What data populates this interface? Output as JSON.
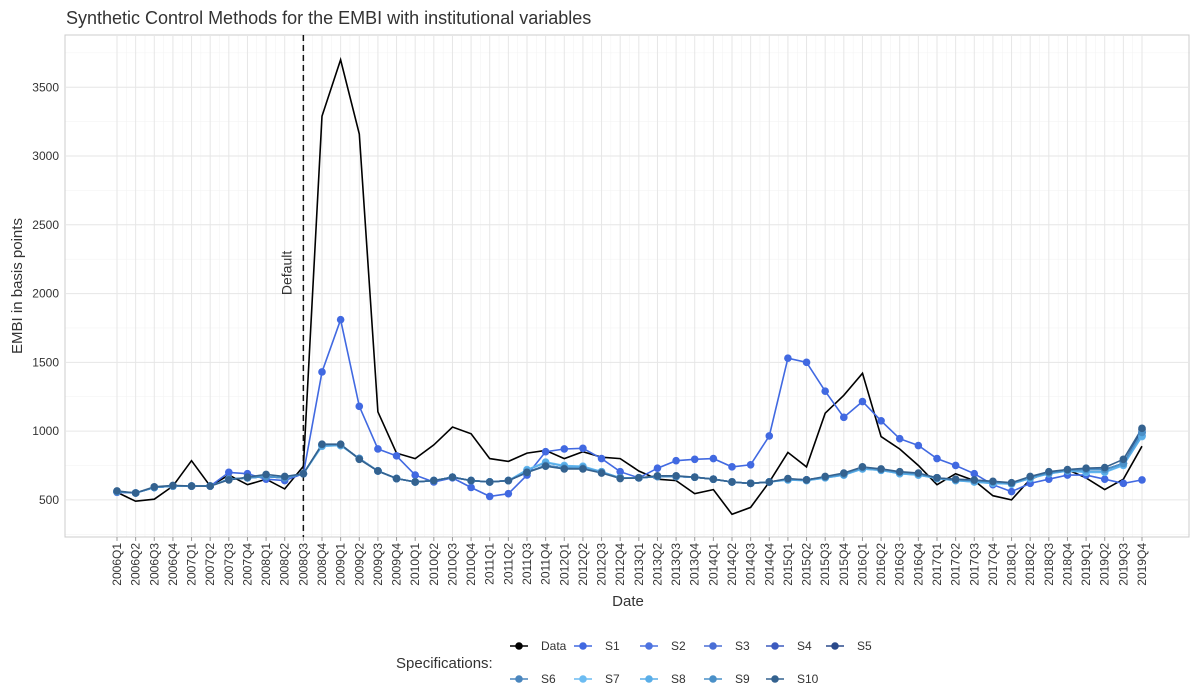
{
  "chart_data": {
    "type": "line",
    "title": "Synthetic Control Methods for the EMBI with institutional variables",
    "x_label": "Date",
    "y_label": "EMBI in basis points",
    "legend_title": "Specifications:",
    "annotation": {
      "text": "Default",
      "x": "2008Q3"
    },
    "categories": [
      "2006Q1",
      "2006Q2",
      "2006Q3",
      "2006Q4",
      "2007Q1",
      "2007Q2",
      "2007Q3",
      "2007Q4",
      "2008Q1",
      "2008Q2",
      "2008Q3",
      "2008Q4",
      "2009Q1",
      "2009Q2",
      "2009Q3",
      "2009Q4",
      "2010Q1",
      "2010Q2",
      "2010Q3",
      "2010Q4",
      "2011Q1",
      "2011Q2",
      "2011Q3",
      "2011Q4",
      "2012Q1",
      "2012Q2",
      "2012Q3",
      "2012Q4",
      "2013Q1",
      "2013Q2",
      "2013Q3",
      "2013Q4",
      "2014Q1",
      "2014Q2",
      "2014Q3",
      "2014Q4",
      "2015Q1",
      "2015Q2",
      "2015Q3",
      "2015Q4",
      "2016Q1",
      "2016Q2",
      "2016Q3",
      "2016Q4",
      "2017Q1",
      "2017Q2",
      "2017Q3",
      "2017Q4",
      "2018Q1",
      "2018Q2",
      "2018Q3",
      "2018Q4",
      "2019Q1",
      "2019Q2",
      "2019Q3",
      "2019Q4"
    ],
    "ylim": [
      230,
      3880
    ],
    "yticks": [
      500,
      1000,
      1500,
      2000,
      2500,
      3000,
      3500
    ],
    "grid": true,
    "series": [
      {
        "name": "Data",
        "color": "#000000",
        "points": false,
        "values": [
          555,
          490,
          505,
          600,
          785,
          600,
          680,
          610,
          650,
          580,
          745,
          3290,
          3700,
          3160,
          1140,
          840,
          800,
          900,
          1030,
          980,
          800,
          780,
          840,
          860,
          800,
          850,
          810,
          800,
          710,
          650,
          640,
          545,
          575,
          395,
          445,
          630,
          845,
          740,
          1130,
          1260,
          1420,
          960,
          870,
          750,
          610,
          690,
          640,
          530,
          500,
          650,
          700,
          720,
          660,
          575,
          650,
          890
        ]
      },
      {
        "name": "S1",
        "color": "#4169e1",
        "points": true,
        "values": [
          555,
          550,
          590,
          600,
          600,
          600,
          700,
          690,
          650,
          640,
          690,
          1430,
          1810,
          1180,
          870,
          820,
          680,
          630,
          660,
          590,
          525,
          545,
          680,
          850,
          870,
          875,
          800,
          705,
          660,
          730,
          785,
          795,
          800,
          740,
          755,
          965,
          1530,
          1500,
          1290,
          1100,
          1215,
          1075,
          945,
          895,
          800,
          750,
          690,
          610,
          560,
          620,
          650,
          680,
          680,
          650,
          620,
          645
        ]
      },
      {
        "name": "S2",
        "color": "#4d73e0",
        "points": true,
        "values": [
          560,
          550,
          590,
          600,
          600,
          600,
          650,
          660,
          670,
          660,
          690,
          900,
          900,
          800,
          710,
          655,
          630,
          640,
          665,
          640,
          630,
          640,
          700,
          750,
          730,
          730,
          700,
          660,
          660,
          670,
          670,
          665,
          650,
          630,
          620,
          630,
          650,
          645,
          665,
          685,
          735,
          720,
          700,
          690,
          660,
          645,
          640,
          630,
          620,
          665,
          695,
          715,
          720,
          720,
          765,
          970
        ]
      },
      {
        "name": "S3",
        "color": "#4a6fd6",
        "points": true,
        "values": [
          560,
          550,
          590,
          600,
          600,
          600,
          650,
          660,
          670,
          660,
          690,
          900,
          900,
          800,
          710,
          655,
          630,
          640,
          665,
          640,
          630,
          640,
          700,
          750,
          730,
          730,
          700,
          660,
          660,
          670,
          670,
          665,
          650,
          630,
          620,
          630,
          650,
          645,
          665,
          685,
          735,
          720,
          700,
          690,
          660,
          645,
          640,
          630,
          620,
          665,
          695,
          715,
          720,
          720,
          765,
          990
        ]
      },
      {
        "name": "S4",
        "color": "#3d5bbf",
        "points": true,
        "values": [
          560,
          550,
          590,
          600,
          600,
          600,
          650,
          660,
          670,
          660,
          690,
          900,
          900,
          800,
          710,
          655,
          630,
          640,
          665,
          640,
          630,
          640,
          700,
          750,
          730,
          730,
          700,
          660,
          660,
          670,
          670,
          665,
          650,
          630,
          620,
          630,
          650,
          645,
          665,
          685,
          735,
          720,
          700,
          690,
          660,
          645,
          640,
          630,
          620,
          665,
          695,
          715,
          720,
          720,
          765,
          990
        ]
      },
      {
        "name": "S5",
        "color": "#2b4a8b",
        "points": true,
        "values": [
          560,
          550,
          590,
          600,
          600,
          600,
          650,
          660,
          670,
          660,
          690,
          900,
          900,
          800,
          710,
          655,
          630,
          640,
          665,
          640,
          630,
          640,
          700,
          750,
          730,
          730,
          700,
          660,
          660,
          670,
          670,
          665,
          650,
          630,
          620,
          630,
          650,
          645,
          665,
          685,
          735,
          720,
          700,
          690,
          660,
          645,
          640,
          630,
          620,
          665,
          695,
          715,
          720,
          720,
          765,
          1010
        ]
      },
      {
        "name": "S6",
        "color": "#4a86be",
        "points": true,
        "values": [
          560,
          550,
          590,
          600,
          600,
          600,
          650,
          660,
          670,
          660,
          690,
          900,
          900,
          800,
          710,
          655,
          630,
          640,
          665,
          640,
          630,
          640,
          700,
          750,
          730,
          730,
          700,
          660,
          660,
          670,
          670,
          665,
          650,
          630,
          620,
          630,
          650,
          645,
          665,
          685,
          735,
          720,
          700,
          690,
          660,
          645,
          640,
          630,
          620,
          665,
          695,
          715,
          720,
          720,
          765,
          990
        ]
      },
      {
        "name": "S7",
        "color": "#6cbcf2",
        "points": true,
        "values": [
          560,
          550,
          590,
          600,
          600,
          600,
          650,
          660,
          670,
          660,
          690,
          890,
          895,
          800,
          710,
          655,
          630,
          640,
          665,
          640,
          630,
          640,
          720,
          775,
          750,
          745,
          705,
          660,
          660,
          670,
          670,
          665,
          650,
          630,
          620,
          630,
          645,
          640,
          660,
          680,
          725,
          715,
          690,
          680,
          655,
          640,
          630,
          620,
          615,
          655,
          690,
          710,
          700,
          700,
          750,
          960
        ]
      },
      {
        "name": "S8",
        "color": "#5aaee8",
        "points": true,
        "values": [
          560,
          550,
          590,
          600,
          600,
          600,
          650,
          660,
          670,
          660,
          690,
          890,
          895,
          800,
          710,
          655,
          630,
          640,
          665,
          640,
          630,
          640,
          715,
          770,
          745,
          740,
          705,
          660,
          660,
          670,
          670,
          665,
          650,
          630,
          620,
          630,
          645,
          640,
          660,
          680,
          725,
          715,
          690,
          680,
          655,
          640,
          630,
          620,
          615,
          655,
          690,
          710,
          705,
          705,
          755,
          965
        ]
      },
      {
        "name": "S9",
        "color": "#4a90c8",
        "points": true,
        "values": [
          560,
          550,
          590,
          600,
          600,
          600,
          650,
          660,
          670,
          660,
          690,
          900,
          900,
          800,
          710,
          655,
          630,
          640,
          665,
          640,
          630,
          640,
          700,
          750,
          730,
          730,
          700,
          660,
          660,
          670,
          670,
          665,
          650,
          630,
          620,
          630,
          650,
          645,
          665,
          685,
          735,
          720,
          700,
          690,
          660,
          645,
          640,
          630,
          620,
          665,
          695,
          715,
          720,
          720,
          765,
          990
        ]
      },
      {
        "name": "S10",
        "color": "#34628f",
        "points": true,
        "values": [
          565,
          550,
          595,
          605,
          600,
          600,
          645,
          665,
          685,
          670,
          690,
          905,
          905,
          795,
          710,
          655,
          630,
          640,
          665,
          640,
          630,
          640,
          700,
          745,
          725,
          725,
          695,
          655,
          660,
          675,
          675,
          665,
          650,
          630,
          620,
          630,
          655,
          645,
          670,
          695,
          740,
          725,
          705,
          695,
          660,
          650,
          645,
          635,
          625,
          670,
          705,
          720,
          730,
          735,
          795,
          1020
        ]
      }
    ]
  }
}
